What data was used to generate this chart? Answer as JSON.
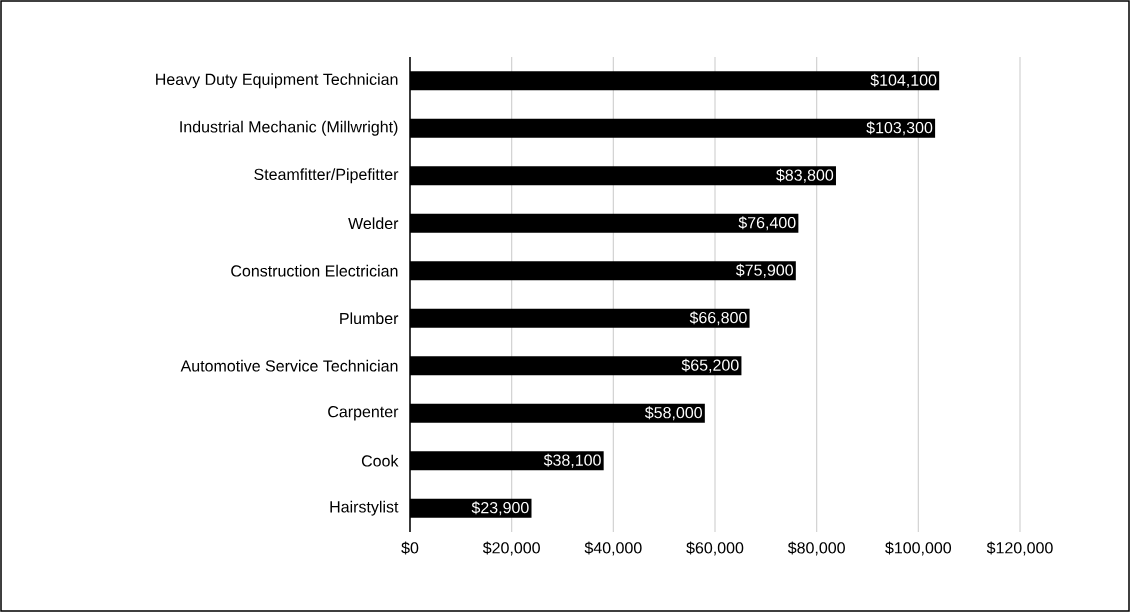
{
  "chart_data": {
    "type": "bar",
    "orientation": "horizontal",
    "categories": [
      "Heavy Duty Equipment Technician",
      "Industrial Mechanic (Millwright)",
      "Steamfitter/Pipefitter",
      "Welder",
      "Construction Electrician",
      "Plumber",
      "Automotive Service Technician",
      "Carpenter",
      "Cook",
      "Hairstylist"
    ],
    "values": [
      104100,
      103300,
      83800,
      76400,
      75900,
      66800,
      65200,
      58000,
      38100,
      23900
    ],
    "value_labels": [
      "$104,100",
      "$103,300",
      "$83,800",
      "$76,400",
      "$75,900",
      "$66,800",
      "$65,200",
      "$58,000",
      "$38,100",
      "$23,900"
    ],
    "color": "#000000",
    "xlim": [
      0,
      120000
    ],
    "xticks": [
      {
        "value": 0,
        "label": "$0"
      },
      {
        "value": 20000,
        "label": "$20,000"
      },
      {
        "value": 40000,
        "label": "$40,000"
      },
      {
        "value": 60000,
        "label": "$60,000"
      },
      {
        "value": 80000,
        "label": "$80,000"
      },
      {
        "value": 100000,
        "label": "$100,000"
      },
      {
        "value": 120000,
        "label": "$120,000"
      }
    ],
    "grid": "x"
  }
}
